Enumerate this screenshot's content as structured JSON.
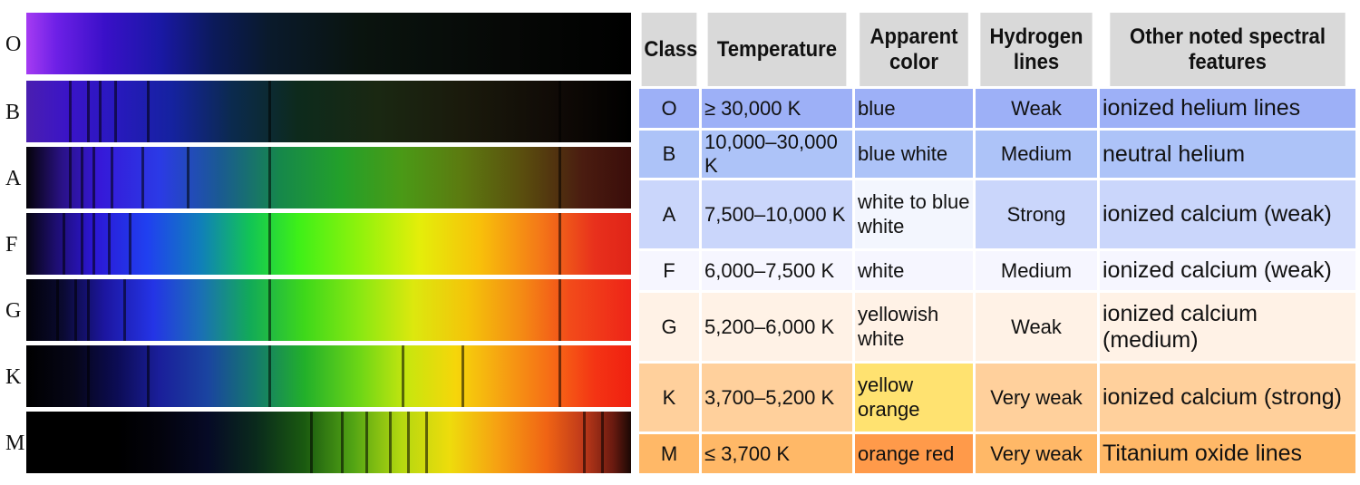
{
  "spectra": [
    {
      "cls": "O",
      "lines": []
    },
    {
      "cls": "B",
      "lines": [
        0.07,
        0.1,
        0.12,
        0.145,
        0.2,
        0.4,
        0.88
      ]
    },
    {
      "cls": "A",
      "lines": [
        0.07,
        0.09,
        0.11,
        0.14,
        0.19,
        0.265,
        0.4,
        0.88
      ]
    },
    {
      "cls": "F",
      "lines": [
        0.06,
        0.09,
        0.11,
        0.135,
        0.17,
        0.4,
        0.88
      ]
    },
    {
      "cls": "G",
      "lines": [
        0.05,
        0.08,
        0.1,
        0.16,
        0.4,
        0.88
      ]
    },
    {
      "cls": "K",
      "lines": [
        0.1,
        0.2,
        0.4,
        0.62,
        0.72,
        0.88
      ]
    },
    {
      "cls": "M",
      "lines": [
        0.47,
        0.52,
        0.56,
        0.6,
        0.63,
        0.66,
        0.92,
        0.95
      ]
    }
  ],
  "table": {
    "headers": {
      "class": "Class",
      "temperature": "Temperature",
      "color": "Apparent color",
      "hydrogen": "Hydrogen lines",
      "features": "Other noted spectral features"
    },
    "rows": [
      {
        "cls": "O",
        "temp": "≥ 30,000 K",
        "color": "blue",
        "hydrogen": "Weak",
        "features": "ionized helium lines",
        "bg_class": "#9db0f7",
        "bg_temp": "#9db0f7",
        "bg_color": "#9db0f7",
        "bg_h": "#9db0f7",
        "bg_feat": "#9db0f7"
      },
      {
        "cls": "B",
        "temp": "10,000–30,000 K",
        "color": "blue white",
        "hydrogen": "Medium",
        "features": "neutral helium",
        "bg_class": "#adc3f8",
        "bg_temp": "#adc3f8",
        "bg_color": "#adc3f8",
        "bg_h": "#adc3f8",
        "bg_feat": "#adc3f8"
      },
      {
        "cls": "A",
        "temp": "7,500–10,000 K",
        "color": "white to blue white",
        "hydrogen": "Strong",
        "features": "ionized calcium (weak)",
        "bg_class": "#cad6fb",
        "bg_temp": "#cad6fb",
        "bg_color": "#f3f6fe",
        "bg_h": "#cad6fb",
        "bg_feat": "#cad6fb"
      },
      {
        "cls": "F",
        "temp": "6,000–7,500 K",
        "color": "white",
        "hydrogen": "Medium",
        "features": "ionized calcium (weak)",
        "bg_class": "#f6f6ff",
        "bg_temp": "#f6f6ff",
        "bg_color": "#f6f6ff",
        "bg_h": "#f6f6ff",
        "bg_feat": "#f6f6ff"
      },
      {
        "cls": "G",
        "temp": "5,200–6,000 K",
        "color": "yellowish white",
        "hydrogen": "Weak",
        "features": "ionized calcium (medium)",
        "bg_class": "#fff2e6",
        "bg_temp": "#fff2e6",
        "bg_color": "#fff2e6",
        "bg_h": "#fff2e6",
        "bg_feat": "#fff2e6"
      },
      {
        "cls": "K",
        "temp": "3,700–5,200 K",
        "color": "yellow orange",
        "hydrogen": "Very weak",
        "features": "ionized calcium (strong)",
        "bg_class": "#ffd09c",
        "bg_temp": "#ffd09c",
        "bg_color": "#ffe270",
        "bg_h": "#ffd09c",
        "bg_feat": "#ffd09c"
      },
      {
        "cls": "M",
        "temp": "≤ 3,700 K",
        "color": "orange red",
        "hydrogen": "Very weak",
        "features": "Titanium oxide lines",
        "bg_class": "#ffb867",
        "bg_temp": "#ffb867",
        "bg_color": "#ff9a4a",
        "bg_h": "#ffb867",
        "bg_feat": "#ffb867"
      }
    ]
  }
}
